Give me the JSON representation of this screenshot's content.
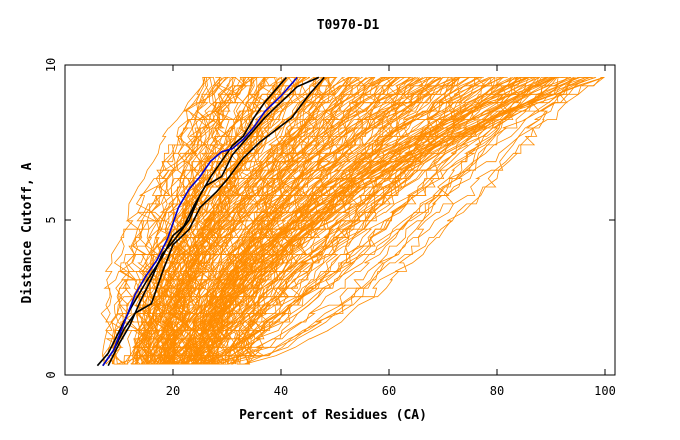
{
  "chart_data": {
    "type": "line",
    "title": "T0970-D1",
    "xlabel": "Percent of Residues (CA)",
    "ylabel": "Distance Cutoff, A",
    "xlim": [
      0,
      100
    ],
    "ylim": [
      0,
      10
    ],
    "xticks": [
      "0",
      "20",
      "40",
      "60",
      "80",
      "100"
    ],
    "yticks": [
      "0",
      "5",
      "10"
    ],
    "grid": false,
    "colors": {
      "background_models": "#ff8c00",
      "highlight_black": "#000000",
      "highlight_blue": "#0000cc"
    },
    "highlight_series": [
      {
        "color": "#000000",
        "x": [
          7,
          9,
          11,
          13,
          16,
          18,
          20,
          23,
          25,
          28,
          30,
          33,
          36,
          39,
          42,
          45,
          48
        ],
        "y": [
          0.3,
          0.8,
          1.5,
          2.0,
          2.3,
          3.3,
          4.2,
          4.7,
          5.4,
          5.9,
          6.3,
          7.0,
          7.5,
          7.9,
          8.3,
          9.0,
          9.6
        ]
      },
      {
        "color": "#000000",
        "x": [
          6,
          8,
          10,
          12,
          15,
          18,
          20,
          22,
          24,
          26,
          29,
          31,
          34,
          37,
          40,
          43,
          47
        ],
        "y": [
          0.3,
          0.7,
          1.4,
          2.1,
          3.0,
          3.8,
          4.5,
          4.8,
          5.5,
          6.1,
          6.4,
          7.1,
          7.7,
          8.3,
          8.8,
          9.3,
          9.6
        ]
      },
      {
        "color": "#000000",
        "x": [
          8,
          10,
          12,
          14,
          16,
          18,
          20,
          23,
          25,
          27,
          29,
          31,
          33,
          35,
          37,
          39,
          41
        ],
        "y": [
          0.3,
          1.0,
          1.6,
          2.4,
          3.1,
          3.9,
          4.3,
          5.0,
          5.8,
          6.4,
          6.9,
          7.4,
          7.7,
          8.3,
          8.8,
          9.2,
          9.6
        ]
      },
      {
        "color": "#0000cc",
        "x": [
          7,
          9,
          11,
          13,
          15,
          17,
          19,
          21,
          23,
          25,
          27,
          29,
          31,
          33,
          35,
          37,
          40,
          43
        ],
        "y": [
          0.3,
          0.8,
          1.7,
          2.6,
          3.2,
          3.7,
          4.4,
          5.4,
          6.0,
          6.4,
          6.9,
          7.2,
          7.3,
          7.6,
          8.0,
          8.5,
          9.0,
          9.6
        ]
      }
    ]
  }
}
